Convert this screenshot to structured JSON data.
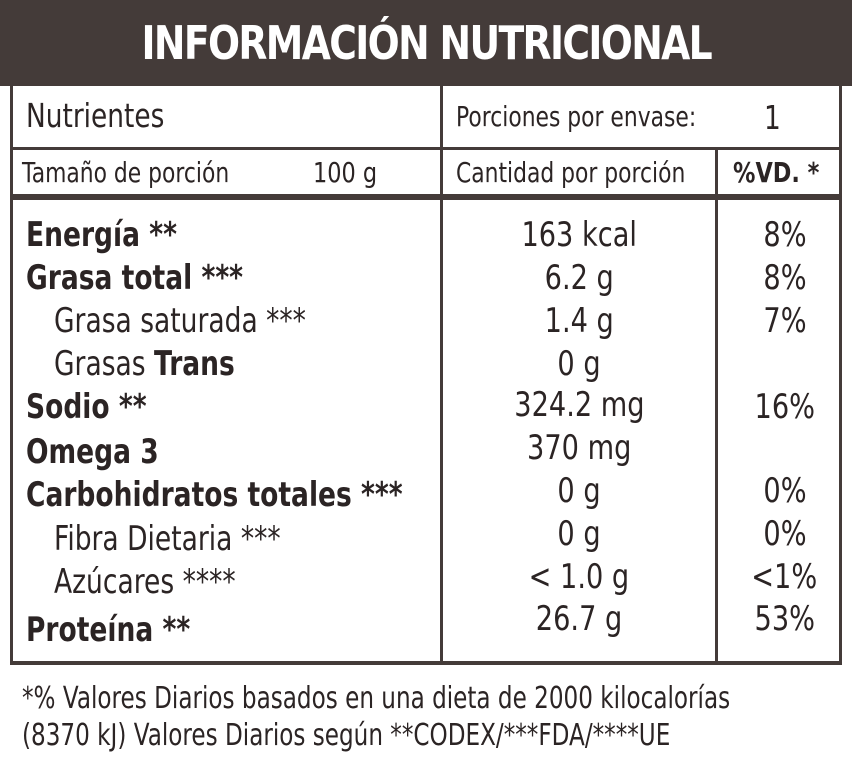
{
  "title": "INFORMACIÓN NUTRICIONAL",
  "header_row": {
    "nutrients_label": "Nutrientes",
    "servings_label": "Porciones por envase:",
    "servings_value": "1"
  },
  "subheader_row": {
    "serving_size_label": "Tamaño de porción",
    "serving_size_value": "100 g",
    "amount_label": "Cantidad por porción",
    "dv_label": "%VD. *"
  },
  "rows": [
    {
      "label": "Energía **",
      "value": "163 kcal",
      "dv": "8%"
    },
    {
      "label": "Grasa total ***",
      "value": "6.2 g",
      "dv": "8%"
    },
    {
      "label": "Grasa saturada ***",
      "value": "1.4 g",
      "dv": "7%"
    },
    {
      "label_prefix": "Grasas ",
      "label_bold": "Trans",
      "value": "0 g",
      "dv": ""
    },
    {
      "label": "Sodio **",
      "value": "324.2 mg",
      "dv": "16%"
    },
    {
      "label": "Omega 3",
      "value": "370 mg",
      "dv": ""
    },
    {
      "label": "Carbohidratos totales ***",
      "value": "0 g",
      "dv": "0%"
    },
    {
      "label": "Fibra Dietaria ***",
      "value": "0 g",
      "dv": "0%"
    },
    {
      "label": "Azúcares ****",
      "value": "< 1.0 g",
      "dv": "<1%"
    },
    {
      "label": "Proteína **",
      "value": "26.7 g",
      "dv": "53%"
    }
  ],
  "footer": {
    "line1": "*% Valores Diarios basados en una dieta de 2000 kilocalorías",
    "line2": "(8370 kJ) Valores Diarios según **CODEX/***FDA/****UE"
  },
  "colors": {
    "dark": "#443b39",
    "text": "#2b2424",
    "background": "#ffffff"
  }
}
